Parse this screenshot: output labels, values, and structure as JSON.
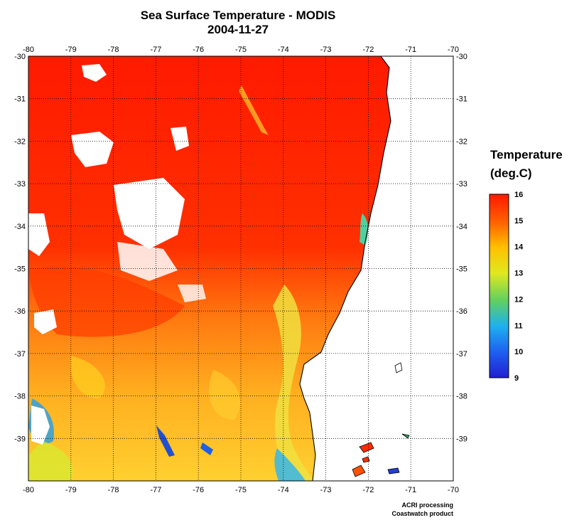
{
  "title": {
    "line1": "Sea Surface Temperature - MODIS",
    "line2": "2004-11-27"
  },
  "map": {
    "lon_range": [
      -80,
      -70
    ],
    "lat_range": [
      -40,
      -30
    ],
    "lon_ticks": [
      "-80",
      "-79",
      "-78",
      "-77",
      "-76",
      "-75",
      "-74",
      "-73",
      "-72",
      "-71",
      "-70"
    ],
    "lat_ticks": [
      "-30",
      "-31",
      "-32",
      "-33",
      "-34",
      "-35",
      "-36",
      "-37",
      "-38",
      "-39"
    ],
    "grid": "dotted",
    "land_color": "#ffffff",
    "cloud_color": "#ffffff"
  },
  "colorbar": {
    "title_line1": "Temperature",
    "title_line2": "(deg.C)",
    "min": 9,
    "max": 16,
    "labels": [
      "16",
      "15",
      "14",
      "13",
      "12",
      "11",
      "10",
      "9"
    ],
    "colors": [
      "#2020d0",
      "#1e90ff",
      "#20c8e0",
      "#60d060",
      "#d8e820",
      "#ffc000",
      "#ff6000",
      "#ff1800"
    ]
  },
  "credit": {
    "line1": "ACRI processing",
    "line2": "Coastwatch product"
  }
}
